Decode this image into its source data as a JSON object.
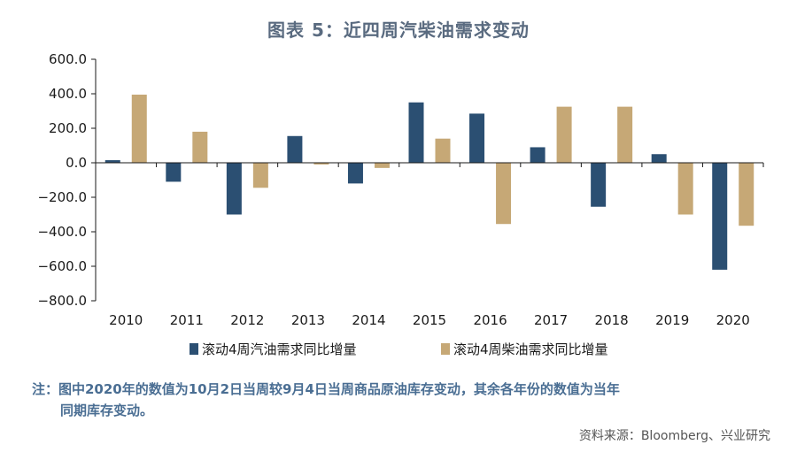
{
  "title": "图表 5：近四周汽柴油需求变动",
  "chart_data": {
    "type": "bar",
    "categories": [
      "2010",
      "2011",
      "2012",
      "2013",
      "2014",
      "2015",
      "2016",
      "2017",
      "2018",
      "2019",
      "2020"
    ],
    "series": [
      {
        "name": "滚动4周汽油需求同比增量",
        "color": "#2b4f72",
        "values": [
          15,
          -110,
          -300,
          155,
          -120,
          350,
          285,
          90,
          -255,
          50,
          -620
        ]
      },
      {
        "name": "滚动4周柴油需求同比增量",
        "color": "#c6a876",
        "values": [
          395,
          180,
          -145,
          -10,
          -30,
          140,
          -355,
          325,
          325,
          -300,
          -365
        ]
      }
    ],
    "ylim": [
      -800,
      600
    ],
    "yticks": [
      600,
      400,
      200,
      0,
      -200,
      -400,
      -600,
      -800
    ],
    "ytick_labels": [
      "600.0",
      "400.0",
      "200.0",
      "0.0",
      "−200.0",
      "−400.0",
      "−600.0",
      "−800.0"
    ],
    "legend_position": "bottom"
  },
  "note": {
    "line1": "注：图中2020年的数值为10月2日当周较9月4日当周商品原油库存变动，其余各年份的数值为当年",
    "line2": "同期库存变动。"
  },
  "source": "资料来源：Bloomberg、兴业研究"
}
